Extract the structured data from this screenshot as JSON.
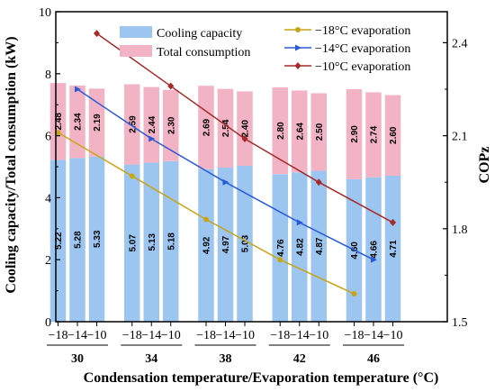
{
  "chart_data": {
    "type": "bar",
    "xlabel": "Condensation temperature/Evaporation temperature (°C)",
    "ylabel": "Cooling capacity/Total consumption (kW)",
    "y2label": "COPz",
    "groups": [
      "30",
      "34",
      "38",
      "42",
      "46"
    ],
    "subcategories": [
      "−18",
      "−14",
      "−10"
    ],
    "ylim": [
      0,
      10
    ],
    "y2lim": [
      1.5,
      2.5
    ],
    "yticks": [
      0,
      2,
      4,
      6,
      8,
      10
    ],
    "y2ticks": [
      1.5,
      1.8,
      2.1,
      2.4
    ],
    "grid": false,
    "legend_position": "top",
    "bar_series": [
      {
        "name": "Cooling capacity",
        "color": "#9cc6f0",
        "values": [
          5.22,
          5.28,
          5.33,
          5.07,
          5.13,
          5.18,
          4.92,
          4.97,
          5.03,
          4.76,
          4.82,
          4.87,
          4.6,
          4.66,
          4.71
        ]
      },
      {
        "name": "Total consumption",
        "color": "#f2b3c4",
        "values": [
          2.48,
          2.34,
          2.19,
          2.59,
          2.44,
          2.3,
          2.69,
          2.54,
          2.4,
          2.8,
          2.64,
          2.5,
          2.9,
          2.74,
          2.6
        ]
      }
    ],
    "line_series": [
      {
        "name": "−18°C evaporation",
        "color": "#c8a418",
        "marker": "circle",
        "bar_index": 0,
        "values": [
          2.11,
          1.97,
          1.83,
          1.7,
          1.59
        ]
      },
      {
        "name": "−14°C evaporation",
        "color": "#2a5bd7",
        "marker": "triangle-right",
        "bar_index": 1,
        "values": [
          2.25,
          2.09,
          1.95,
          1.82,
          1.7
        ]
      },
      {
        "name": "−10°C evaporation",
        "color": "#a52a2a",
        "marker": "diamond",
        "bar_index": 2,
        "values": [
          2.43,
          2.26,
          2.09,
          1.95,
          1.82
        ]
      }
    ]
  }
}
